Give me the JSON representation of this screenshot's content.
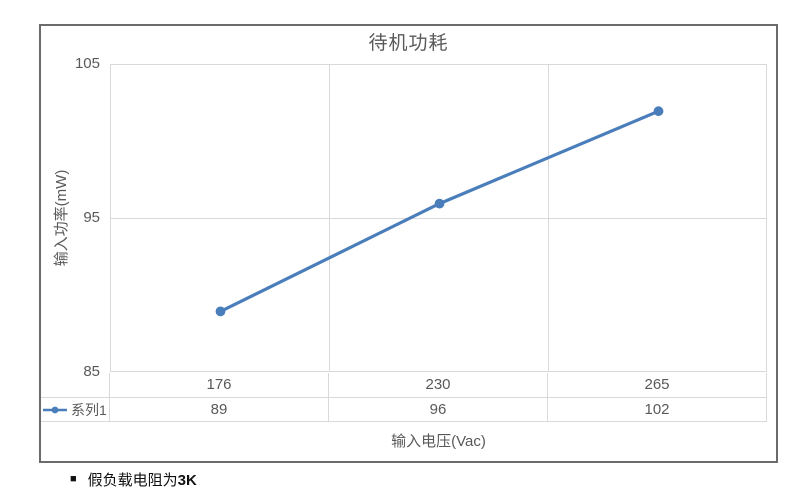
{
  "chart_data": {
    "type": "line",
    "title": "待机功耗",
    "xlabel": "输入电压(Vac)",
    "ylabel": "输入功率(mW)",
    "categories": [
      "176",
      "230",
      "265"
    ],
    "series": [
      {
        "name": "系列1",
        "values": [
          89,
          96,
          102
        ]
      }
    ],
    "ylim": [
      85,
      105
    ],
    "yticks": [
      85,
      95,
      105
    ],
    "grid": true,
    "legend_position": "data-table-left",
    "line_color": "#4a7ebb",
    "grid_color": "#d9d9d9",
    "text_color": "#595959",
    "frame_color": "#6b6b6b"
  },
  "annotation": {
    "bullet": "■",
    "text": "假负载电阻为",
    "text_bold": "3K"
  }
}
